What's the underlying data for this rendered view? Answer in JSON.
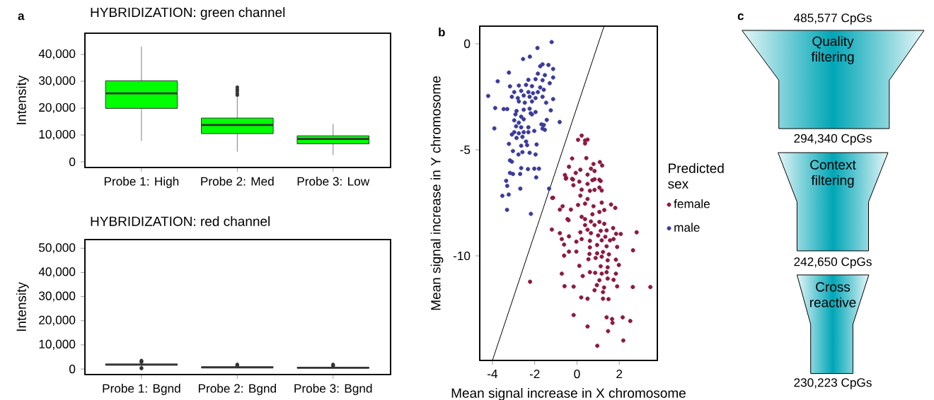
{
  "chart_data": [
    {
      "type": "box",
      "title": "HYBRIDIZATION: green channel",
      "ylabel": "Intensity",
      "annotations": [
        "a"
      ],
      "categories": [
        "Probe 1: High",
        "Probe 2: Med",
        "Probe 3: Low"
      ],
      "color": "#00ff00",
      "boxes": [
        {
          "low": 7800,
          "q1": 19900,
          "median": 25500,
          "q3": 30200,
          "high": 42900
        },
        {
          "low": 3800,
          "q1": 10500,
          "median": 13700,
          "q3": 16300,
          "high": 23900,
          "outliers": [
            24800,
            25500,
            26300,
            27000,
            27800
          ]
        },
        {
          "low": 2500,
          "q1": 6700,
          "median": 8500,
          "q3": 9700,
          "high": 14100
        }
      ],
      "ylim": [
        -2100,
        47900
      ],
      "yticks": [
        0,
        {
          "value": 10000,
          "label": "10,000"
        },
        {
          "value": 20000,
          "label": "20,000"
        },
        {
          "value": 30000,
          "label": "30,000"
        },
        {
          "value": 40000,
          "label": "40,000"
        }
      ]
    },
    {
      "type": "box",
      "title": "HYBRIDIZATION: red channel",
      "ylabel": "Intensity",
      "categories": [
        "Probe 1: Bgnd",
        "Probe 2: Bgnd",
        "Probe 3: Bgnd"
      ],
      "color": "#333333",
      "boxes": [
        {
          "low": 1200,
          "q1": 1600,
          "median": 1800,
          "q3": 2000,
          "high": 2400,
          "outliers": [
            200,
            500,
            2800,
            3200,
            3500
          ]
        },
        {
          "low": 400,
          "q1": 600,
          "median": 700,
          "q3": 800,
          "high": 1000,
          "outliers": [
            1300,
            1600,
            1900
          ]
        },
        {
          "low": 200,
          "q1": 400,
          "median": 500,
          "q3": 650,
          "high": 900,
          "outliers": [
            1200,
            1500,
            1900
          ]
        }
      ],
      "ylim": [
        -2300,
        53600
      ],
      "yticks": [
        0,
        {
          "value": 10000,
          "label": "10,000"
        },
        {
          "value": 20000,
          "label": "20,000"
        },
        {
          "value": 30000,
          "label": "30,000"
        },
        {
          "value": 40000,
          "label": "40,000"
        },
        {
          "value": 50000,
          "label": "50,000"
        }
      ]
    },
    {
      "type": "scatter",
      "xlabel": "Mean signal increase in X chromosome",
      "ylabel": "Mean signal increase in Y chromosome",
      "legend_title": "Predicted sex",
      "legend": "right",
      "marker": "circle",
      "annotations": [
        "b"
      ],
      "xlim": [
        -4.6,
        3.8
      ],
      "ylim": [
        -14.93,
        0.83
      ],
      "xticks": [
        -4,
        -2,
        0,
        2
      ],
      "yticks": [
        0,
        -5,
        -10
      ],
      "series": [
        {
          "name": "female",
          "color": "#8b1a3e",
          "x": [
            0.22,
            0.05,
            0.38,
            0.5,
            0.38,
            -0.23,
            0.44,
            1.19,
            1.08,
            0.78,
            -0.38,
            0.16,
            0.66,
            0.83,
            -0.57,
            -0.06,
            -0.51,
            -0.23,
            0.11,
            0.5,
            0.83,
            1.06,
            -0.17,
            0.5,
            1.06,
            0.83,
            1.17,
            -1.13,
            -0.53,
            -0.19,
            0.73,
            1.12,
            0.22,
            0.61,
            -1.17,
            0.16,
            0.5,
            1.17,
            -0.68,
            -0.29,
            0.05,
            0.38,
            0.78,
            1.61,
            1.81,
            -0.81,
            -0.45,
            0.22,
            0.73,
            1.06,
            1.29,
            -0.4,
            0.38,
            0.66,
            1.06,
            0.38,
            0.83,
            1.29,
            1.71,
            -1.19,
            0.5,
            1.12,
            1.4,
            1.85,
            2.07,
            2.82,
            -0.81,
            -0.38,
            0.16,
            0.66,
            1.0,
            1.34,
            1.73,
            -0.72,
            -0.03,
            0.22,
            0.61,
            1.17,
            1.56,
            -0.61,
            0.61,
            0.95,
            1.4,
            1.9,
            2.65,
            -0.38,
            -0.03,
            0.59,
            0.95,
            1.23,
            1.51,
            -0.61,
            0.54,
            0.88,
            1.17,
            1.45,
            1.84,
            0.11,
            1.12,
            1.45,
            1.98,
            -0.72,
            0.61,
            0.86,
            1.17,
            1.4,
            1.84,
            -2.22,
            0.27,
            1.06,
            1.45,
            1.73,
            -0.59,
            -0.16,
            0.94,
            1.28,
            1.9,
            2.64,
            3.47,
            0.83,
            1.23,
            0.2,
            0.5,
            1.23,
            1.49,
            -0.16,
            1.4,
            1.66,
            2.16,
            2.52,
            1.68,
            0.5,
            1.47,
            2.19,
            0.96
          ],
          "values": [
            -4.33,
            -4.53,
            -4.56,
            -4.52,
            -4.7,
            -5.41,
            -5.39,
            -5.74,
            -5.58,
            -5.67,
            -5.8,
            -5.94,
            -5.89,
            -6.0,
            -6.19,
            -6.09,
            -6.33,
            -6.37,
            -6.5,
            -6.17,
            -6.39,
            -6.41,
            -6.67,
            -6.61,
            -6.78,
            -6.89,
            -6.92,
            -7.26,
            -6.36,
            -6.4,
            -6.43,
            -6.47,
            -6.88,
            -6.93,
            -7.27,
            -7.16,
            -7.32,
            -7.49,
            -7.66,
            -7.82,
            -7.6,
            -7.54,
            -7.66,
            -7.58,
            -7.74,
            -7.82,
            -8.27,
            -8.16,
            -8.04,
            -7.93,
            -7.84,
            -8.32,
            -8.27,
            -8.38,
            -8.4,
            -8.55,
            -8.55,
            -8.49,
            -8.69,
            -8.76,
            -8.77,
            -8.82,
            -8.8,
            -8.96,
            -8.97,
            -8.89,
            -8.93,
            -9.08,
            -8.89,
            -8.93,
            -9.04,
            -9.1,
            -9.21,
            -9.21,
            -9.33,
            -9.21,
            -9.29,
            -9.27,
            -9.27,
            -9.47,
            -9.6,
            -9.49,
            -9.55,
            -9.58,
            -9.74,
            -9.8,
            -9.8,
            -9.91,
            -9.88,
            -9.82,
            -9.93,
            -9.99,
            -10.16,
            -10.1,
            -10.04,
            -10.21,
            -10.18,
            -10.47,
            -10.49,
            -10.54,
            -10.43,
            -10.84,
            -10.77,
            -10.8,
            -10.84,
            -10.77,
            -10.84,
            -11.22,
            -10.95,
            -11.15,
            -11.07,
            -11.13,
            -11.43,
            -11.45,
            -11.38,
            -11.49,
            -11.44,
            -11.47,
            -11.47,
            -11.62,
            -11.71,
            -11.96,
            -12.02,
            -12.02,
            -12.04,
            -12.79,
            -12.9,
            -12.98,
            -12.9,
            -13.07,
            -13.16,
            -13.33,
            -13.55,
            -13.99,
            -14.24
          ]
        },
        {
          "name": "male",
          "color": "#3b3b9c",
          "x": [
            -1.2,
            -1.87,
            -2.23,
            -2.55,
            -1.74,
            -1.63,
            -1.35,
            -1.13,
            -3.22,
            -1.85,
            -1.52,
            -1.13,
            -3.75,
            -2.3,
            -1.96,
            -1.63,
            -1.29,
            -3.17,
            -2.75,
            -2.41,
            -2.13,
            -1.74,
            -1.57,
            -4.2,
            -2.97,
            -2.64,
            -2.3,
            -2.08,
            -1.85,
            -3.08,
            -2.8,
            -2.52,
            -2.24,
            -1.96,
            -1.63,
            -1.13,
            -2.75,
            -2.47,
            -2.13,
            -1.46,
            -3.87,
            -3.47,
            -3.3,
            -2.86,
            -2.52,
            -2.24,
            -1.96,
            -1.24,
            -2.91,
            -2.64,
            -2.19,
            -2.13,
            -2.97,
            -2.75,
            -2.52,
            -1.43,
            -0.82,
            -1.68,
            -1.57,
            -3.91,
            -2.88,
            -2.64,
            -2.3,
            -2.02,
            -1.63,
            -1.52,
            -3.08,
            -2.97,
            -2.75,
            -2.52,
            -2.3,
            -2.86,
            -2.58,
            -2.41,
            -3.22,
            -2.64,
            -2.36,
            -1.91,
            -3.03,
            -2.77,
            -2.58,
            -2.24,
            -1.96,
            -3.17,
            -3.08,
            -2.64,
            -2.32,
            -2.02,
            -1.8,
            -3.17,
            -3.03,
            -2.69,
            -1.93,
            -3.35,
            -3.3,
            -2.68,
            -1.32,
            -3.53,
            -3.23,
            -3.31,
            -2.18
          ],
          "values": [
            0.08,
            -0.2,
            -0.61,
            -0.72,
            -1.06,
            -0.97,
            -1.0,
            -1.19,
            -1.36,
            -1.41,
            -1.48,
            -1.59,
            -1.77,
            -1.7,
            -1.67,
            -1.72,
            -1.86,
            -2.01,
            -1.97,
            -1.94,
            -2.0,
            -2.06,
            -2.17,
            -2.46,
            -2.28,
            -2.22,
            -2.28,
            -2.33,
            -2.28,
            -2.5,
            -2.56,
            -2.44,
            -2.5,
            -2.56,
            -2.5,
            -2.61,
            -2.72,
            -2.78,
            -2.72,
            -2.78,
            -3.03,
            -3.08,
            -3.08,
            -3.17,
            -3.11,
            -3.06,
            -3.22,
            -3.14,
            -3.33,
            -3.44,
            -3.28,
            -3.33,
            -3.61,
            -3.72,
            -3.56,
            -3.59,
            -3.69,
            -3.8,
            -3.83,
            -3.99,
            -3.89,
            -3.94,
            -3.94,
            -4.11,
            -4.0,
            -4.06,
            -4.28,
            -4.17,
            -4.22,
            -4.17,
            -4.17,
            -4.44,
            -4.39,
            -4.61,
            -4.72,
            -4.81,
            -4.78,
            -4.75,
            -5.06,
            -5.22,
            -5.11,
            -5.14,
            -5.22,
            -5.5,
            -5.56,
            -5.86,
            -5.91,
            -5.89,
            -5.89,
            -6.09,
            -6.14,
            -6.14,
            -6.3,
            -6.46,
            -6.7,
            -6.83,
            -6.83,
            -7.17,
            -7.11,
            -7.83,
            -8.02
          ]
        },
        {
          "type": "line",
          "marker": "none",
          "color": "#000000",
          "x": [
            -4.0,
            1.28
          ],
          "values": [
            -14.93,
            0.83
          ]
        }
      ]
    },
    {
      "type": "other",
      "categories": [
        "Quality filtering",
        "Context filtering",
        "Cross reactive"
      ],
      "annotations": [
        "c",
        "485,577 CpGs",
        "294,340 CpGs",
        "242,650 CpGs",
        "230,223 CpGs"
      ]
    }
  ]
}
